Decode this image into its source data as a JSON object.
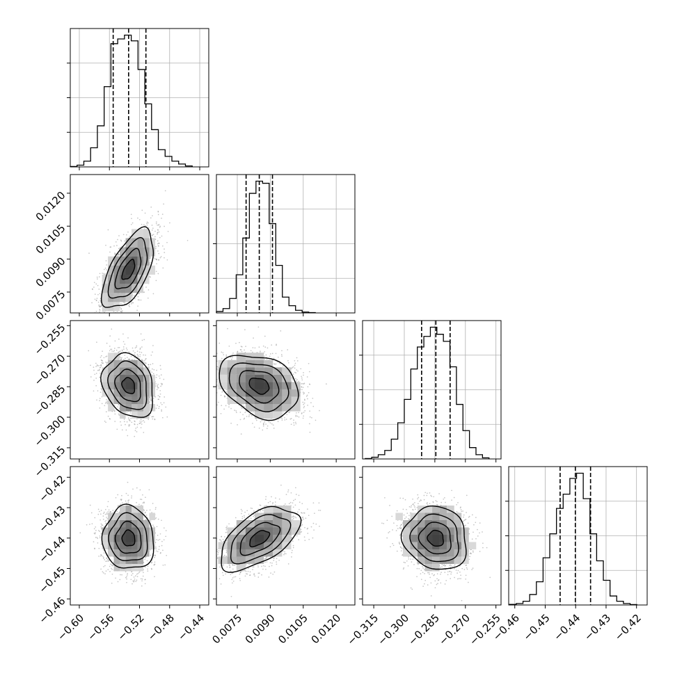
{
  "chart_data": {
    "type": "corner",
    "colors": {
      "hist": "#000000",
      "grid": "#b0b0b0",
      "points": "#8a8a8a",
      "contour": "#000000"
    },
    "grid": true,
    "params": [
      {
        "id": "p0",
        "lim": [
          -0.612,
          -0.428
        ],
        "ticks": [
          -0.6,
          -0.56,
          -0.52,
          -0.48,
          -0.44
        ],
        "tick_labels": [
          "−0.60",
          "−0.56",
          "−0.52",
          "−0.48",
          "−0.44"
        ],
        "quantiles": [
          -0.555,
          -0.5345,
          -0.5115
        ],
        "hist_x": [
          -0.6075,
          -0.5985,
          -0.5895,
          -0.5805,
          -0.5715,
          -0.5625,
          -0.5535,
          -0.5445,
          -0.5355,
          -0.5265,
          -0.5175,
          -0.5085,
          -0.4995,
          -0.4905,
          -0.4815,
          -0.4725,
          -0.4635,
          -0.4545
        ],
        "hist_y": [
          2,
          9,
          30,
          100,
          215,
          420,
          645,
          670,
          690,
          660,
          510,
          330,
          195,
          90,
          55,
          30,
          15,
          5
        ]
      },
      {
        "id": "p1",
        "lim": [
          0.00655,
          0.01285
        ],
        "ticks": [
          0.0075,
          0.009,
          0.0105,
          0.012
        ],
        "tick_labels": [
          "0.0075",
          "0.0090",
          "0.0105",
          "0.0120"
        ],
        "quantiles": [
          0.0079,
          0.0085,
          0.0091
        ],
        "hist_x": [
          0.0067,
          0.007,
          0.0073,
          0.0076,
          0.0079,
          0.0082,
          0.0085,
          0.0088,
          0.0091,
          0.0094,
          0.0097,
          0.01,
          0.0103,
          0.0106,
          0.0109
        ],
        "hist_y": [
          10,
          30,
          100,
          265,
          520,
          830,
          915,
          900,
          620,
          330,
          110,
          50,
          18,
          6,
          2
        ]
      },
      {
        "id": "p2",
        "lim": [
          -0.3205,
          -0.2525
        ],
        "ticks": [
          -0.315,
          -0.3,
          -0.285,
          -0.27,
          -0.255
        ],
        "tick_labels": [
          "−0.315",
          "−0.300",
          "−0.285",
          "−0.270",
          "−0.255"
        ],
        "quantiles": [
          -0.2915,
          -0.2845,
          -0.2775
        ],
        "hist_x": [
          -0.3176,
          -0.3144,
          -0.3112,
          -0.308,
          -0.3048,
          -0.3016,
          -0.2984,
          -0.2952,
          -0.292,
          -0.2888,
          -0.2856,
          -0.2824,
          -0.2792,
          -0.276,
          -0.2728,
          -0.2696,
          -0.2664,
          -0.2632,
          -0.26
        ],
        "hist_y": [
          3,
          12,
          30,
          60,
          140,
          255,
          420,
          635,
          790,
          865,
          930,
          880,
          830,
          650,
          385,
          200,
          80,
          30,
          8
        ]
      },
      {
        "id": "p3",
        "lim": [
          -0.462,
          -0.4165
        ],
        "ticks": [
          -0.46,
          -0.45,
          -0.44,
          -0.43,
          -0.42
        ],
        "tick_labels": [
          "−0.46",
          "−0.45",
          "−0.44",
          "−0.43",
          "−0.42"
        ],
        "quantiles": [
          -0.4451,
          -0.4401,
          -0.4351
        ],
        "hist_x": [
          -0.4606,
          -0.4584,
          -0.4562,
          -0.454,
          -0.4518,
          -0.4496,
          -0.4474,
          -0.4452,
          -0.443,
          -0.4408,
          -0.4386,
          -0.4364,
          -0.4342,
          -0.432,
          -0.4298,
          -0.4276,
          -0.4254,
          -0.4232,
          -0.421
        ],
        "hist_y": [
          4,
          10,
          25,
          70,
          155,
          315,
          475,
          645,
          740,
          845,
          880,
          710,
          475,
          295,
          165,
          60,
          25,
          10,
          3
        ]
      }
    ],
    "pairs": [
      {
        "x": "p0",
        "y": "p1",
        "mean": [
          -0.5345,
          0.0085
        ],
        "std": [
          0.017,
          0.0009
        ],
        "rho": 0.6,
        "seed": 11
      },
      {
        "x": "p0",
        "y": "p2",
        "mean": [
          -0.5345,
          -0.2845
        ],
        "std": [
          0.017,
          0.0078
        ],
        "rho": -0.22,
        "seed": 23
      },
      {
        "x": "p1",
        "y": "p2",
        "mean": [
          0.0085,
          -0.2845
        ],
        "std": [
          0.0009,
          0.0078
        ],
        "rho": -0.3,
        "seed": 37
      },
      {
        "x": "p0",
        "y": "p3",
        "mean": [
          -0.5345,
          -0.4401
        ],
        "std": [
          0.017,
          0.0052
        ],
        "rho": -0.05,
        "seed": 41
      },
      {
        "x": "p1",
        "y": "p3",
        "mean": [
          0.0085,
          -0.4401
        ],
        "std": [
          0.0009,
          0.0052
        ],
        "rho": 0.55,
        "seed": 53
      },
      {
        "x": "p2",
        "y": "p3",
        "mean": [
          -0.2845,
          -0.4401
        ],
        "std": [
          0.0078,
          0.0052
        ],
        "rho": -0.1,
        "seed": 67
      }
    ]
  }
}
